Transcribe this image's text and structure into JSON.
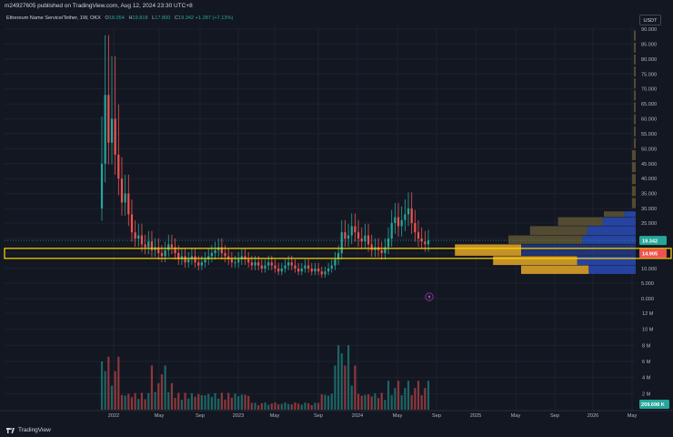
{
  "header": {
    "publisher": "m24927605 published on TradingView.com, Aug 12, 2024 23:30 UTC+8"
  },
  "legend": {
    "title": "Ethereum Name Service/Tether, 1W, OKX",
    "o_label": "O",
    "o_value": "18.054",
    "h_label": "H",
    "h_value": "19.818",
    "l_label": "L",
    "l_value": "17.800",
    "c_label": "C",
    "c_value": "19.342",
    "change": "+1.287 (+7.13%)"
  },
  "currency_button": {
    "label": "USDT"
  },
  "branding": {
    "logo_text": "TradingView"
  },
  "colors": {
    "background": "#131722",
    "up": "#26a69a",
    "down": "#ef5350",
    "highlight_box": "#ffd600",
    "profile_blue": "#2a4bb5",
    "profile_gold": "#d9a028",
    "profile_olive": "#5b5133"
  },
  "chart_data": {
    "type": "candlestick",
    "symbol": "Ethereum Name Service/Tether",
    "interval": "1W",
    "exchange": "OKX",
    "price_axis": {
      "ticks": [
        0,
        5,
        10,
        15,
        20,
        25,
        30,
        35,
        40,
        45,
        50,
        55,
        60,
        65,
        70,
        75,
        80,
        85,
        90
      ],
      "tick_labels": [
        "0.000",
        "5.000",
        "10.000",
        "",
        "",
        "25.000",
        "30.000",
        "35.000",
        "40.000",
        "45.000",
        "50.000",
        "55.000",
        "60.000",
        "65.000",
        "70.000",
        "75.000",
        "80.000",
        "85.000",
        "90.000"
      ],
      "range": [
        0,
        90
      ],
      "scale": "log-like"
    },
    "time_axis": {
      "labels": [
        "2022",
        "May",
        "Sep",
        "2023",
        "May",
        "Sep",
        "2024",
        "May",
        "Sep",
        "2025",
        "May",
        "Sep",
        "2026",
        "May"
      ]
    },
    "last_price": {
      "value": 19.342,
      "label": "19.342"
    },
    "marked_level": {
      "value": 14.905,
      "label": "14.905"
    },
    "volume_axis": {
      "ticks": [
        2,
        4,
        6,
        8,
        10,
        12
      ],
      "tick_labels": [
        "2 M",
        "4 M",
        "6 M",
        "8 M",
        "10 M",
        "12 M"
      ],
      "unit": "M",
      "last_volume_label": "209.698 K"
    },
    "candles_close": [
      45,
      68,
      52,
      60,
      48,
      40,
      32,
      35,
      28,
      22,
      20,
      21,
      18,
      17,
      19,
      16,
      17,
      15,
      14,
      16,
      18,
      17,
      15,
      13,
      14,
      12,
      13,
      14,
      12,
      11,
      12,
      13,
      14,
      15,
      16,
      17,
      15,
      14,
      13,
      12,
      12,
      13,
      14,
      13,
      12,
      11,
      12,
      11,
      10,
      11,
      12,
      11,
      10,
      9,
      10,
      11,
      12,
      11,
      10,
      9,
      10,
      11,
      10,
      9,
      10,
      9,
      8,
      9,
      10,
      11,
      13,
      15,
      22,
      20,
      21,
      24,
      22,
      20,
      19,
      21,
      18,
      16,
      17,
      16,
      15,
      17,
      20,
      25,
      27,
      24,
      26,
      28,
      30,
      25,
      22,
      20,
      19,
      18,
      19.342
    ],
    "volume_profile": [
      {
        "low": 27,
        "high": 29,
        "up": 1.6,
        "down": 0.9
      },
      {
        "low": 24,
        "high": 27,
        "up": 3.5,
        "down": 2.6
      },
      {
        "low": 21,
        "high": 24,
        "up": 4.5,
        "down": 3.8
      },
      {
        "low": 18,
        "high": 21,
        "up": 5.8,
        "down": 4.2
      },
      {
        "low": 14,
        "high": 18,
        "up": 5.2,
        "down": 9.0
      },
      {
        "low": 11,
        "high": 14,
        "up": 6.6,
        "down": 4.6
      },
      {
        "low": 8,
        "high": 11,
        "up": 5.3,
        "down": 3.7
      }
    ],
    "grid": true
  }
}
